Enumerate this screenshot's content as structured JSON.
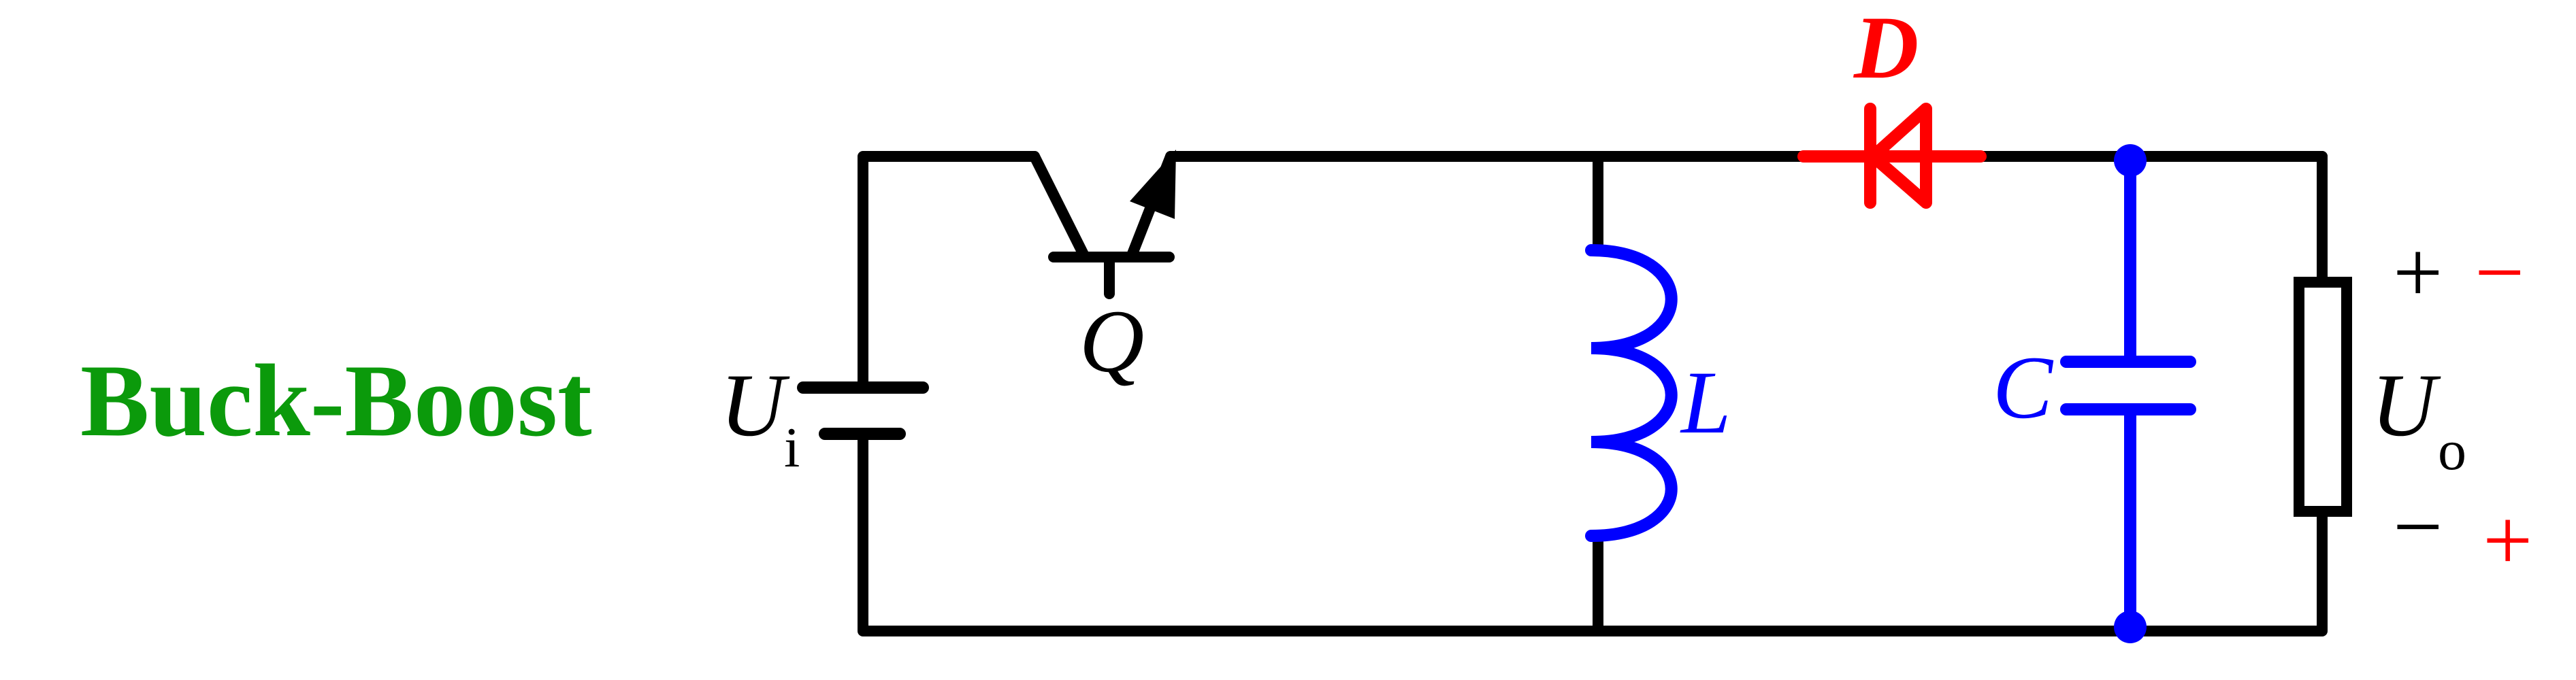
{
  "title": "Buck-Boost",
  "components": {
    "source": {
      "symbol": "U",
      "subscript": "i"
    },
    "switch": {
      "symbol": "Q"
    },
    "inductor": {
      "symbol": "L"
    },
    "diode": {
      "symbol": "D"
    },
    "capacitor": {
      "symbol": "C"
    },
    "load": {
      "symbol": "U",
      "subscript": "o"
    }
  },
  "polarity": {
    "top_black": "+",
    "top_red": "−",
    "bottom_black": "−",
    "bottom_red": "+"
  },
  "colors": {
    "title": "#0b9a0b",
    "wire": "#000000",
    "diode": "#ff0000",
    "inductor": "#0000ff",
    "capacitor": "#0000ff",
    "polarity_alt": "#ff0000"
  }
}
